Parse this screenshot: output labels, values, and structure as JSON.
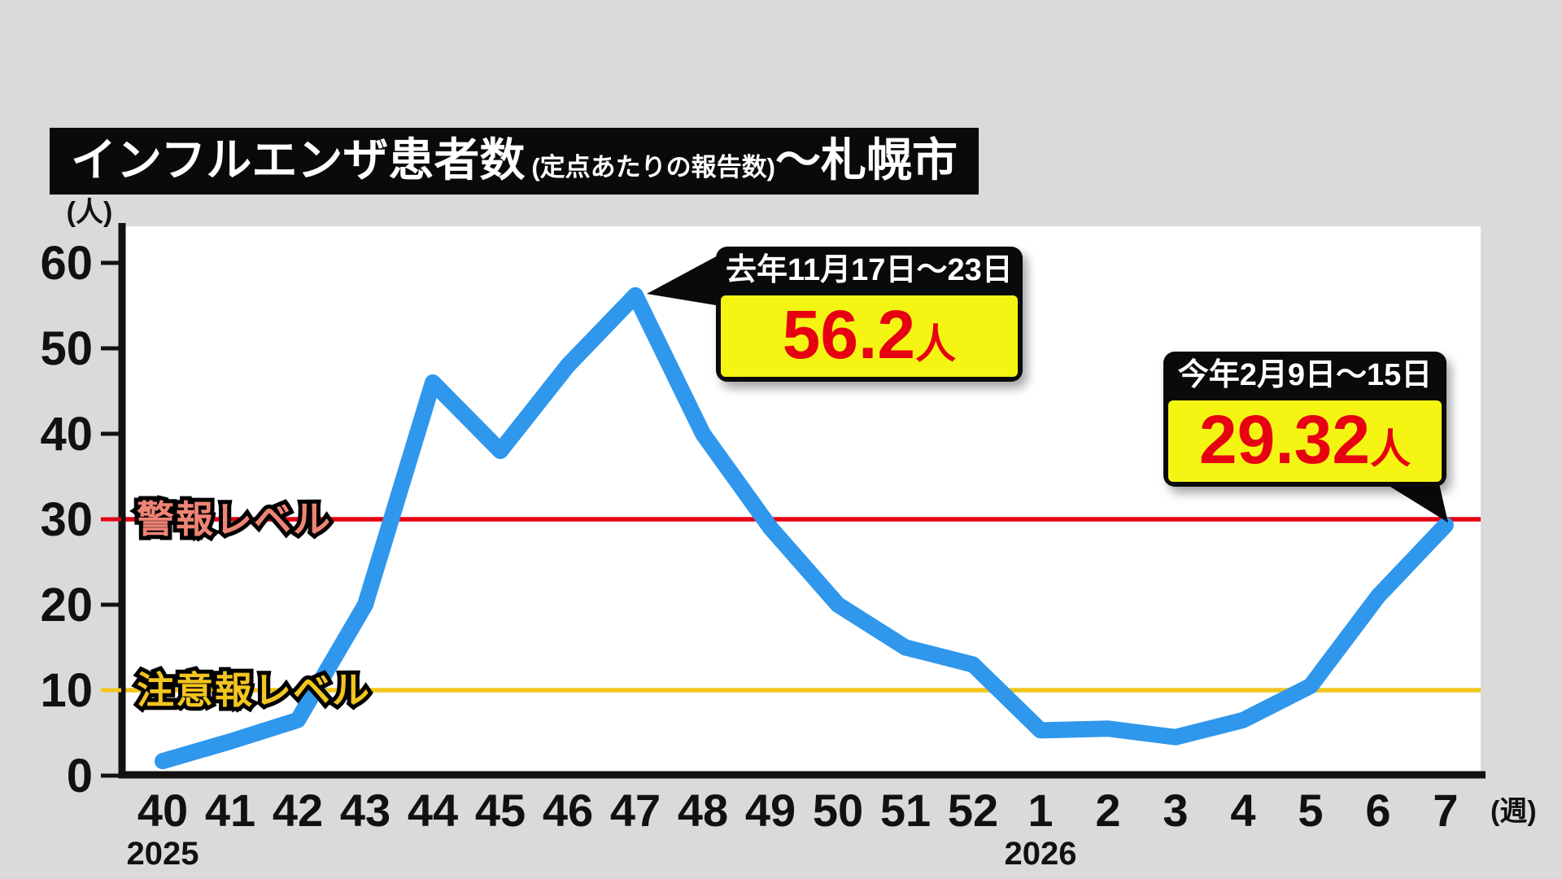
{
  "title": {
    "main": "インフルエンザ患者数",
    "sub": "(定点あたりの報告数)",
    "suffix": "～札幌市"
  },
  "y_axis_unit": "(人)",
  "x_axis_unit": "(週)",
  "chart_data": {
    "type": "line",
    "title": "インフルエンザ患者数(定点あたりの報告数)～札幌市",
    "series_name": "定点あたりの報告数",
    "categories": [
      "40",
      "41",
      "42",
      "43",
      "44",
      "45",
      "46",
      "47",
      "48",
      "49",
      "50",
      "51",
      "52",
      "1",
      "2",
      "3",
      "4",
      "5",
      "6",
      "7"
    ],
    "values": [
      1.7,
      4,
      6.5,
      20,
      46,
      38,
      48,
      56.2,
      40,
      29,
      20,
      15,
      13,
      5.3,
      5.5,
      4.5,
      6.5,
      10.5,
      21,
      29.32
    ],
    "xlabel": "週",
    "ylabel": "人",
    "ylim": [
      0,
      63
    ],
    "y_ticks": [
      0,
      10,
      20,
      30,
      40,
      50,
      60
    ],
    "grid": false,
    "legend": "none",
    "year_labels": [
      {
        "label": "2025",
        "index": 0
      },
      {
        "label": "2026",
        "index": 13
      }
    ],
    "thresholds": [
      {
        "label": "警報レベル",
        "value": 30,
        "line_color": "#e60012",
        "label_color": "#ef8475"
      },
      {
        "label": "注意報レベル",
        "value": 10,
        "line_color": "#f2c51f",
        "label_color": "#f2c51f"
      }
    ],
    "line_color": "#2f97ec",
    "annotated_points": [
      {
        "category": "47",
        "value": 56.2
      },
      {
        "category": "7",
        "value": 29.32
      }
    ]
  },
  "annotations": [
    {
      "date_label": "去年11月17日～23日",
      "value": "56.2",
      "unit": "人"
    },
    {
      "date_label": "今年2月9日～15日",
      "value": "29.32",
      "unit": "人"
    }
  ],
  "colors": {
    "background": "#dadada",
    "plot_background": "#ffffff",
    "series_blue": "#2f97ec",
    "alert_red": "#e60012",
    "caution_yellow": "#f2c51f",
    "annotation_yellow_bg": "#f4f513",
    "annotation_value_red": "#e60012",
    "badge_black": "#0a0a0a"
  }
}
